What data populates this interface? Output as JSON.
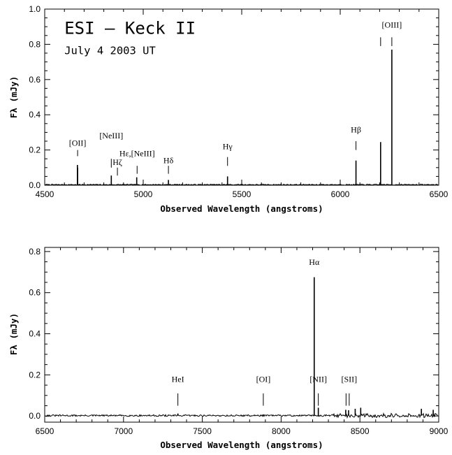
{
  "chart_data": [
    {
      "type": "line",
      "panel": "top",
      "title": "ESI – Keck II",
      "subtitle": "July 4 2003 UT",
      "xlabel": "Observed Wavelength (angstroms)",
      "ylabel": "Fλ (mJy)",
      "xlim": [
        4500,
        6500
      ],
      "ylim": [
        0.0,
        1.0
      ],
      "xticks": [
        4500,
        5000,
        5500,
        6000,
        6500
      ],
      "xtick_labels": [
        "4500",
        "5000",
        "5500",
        "6000",
        "6500"
      ],
      "yticks": [
        0.0,
        0.2,
        0.4,
        0.6,
        0.8,
        1.0
      ],
      "ytick_labels": [
        "0.0",
        "0.2",
        "0.4",
        "0.6",
        "0.8",
        "1.0"
      ],
      "continuum": 0.003,
      "noise": 0.003,
      "lines": [
        {
          "x": 4666,
          "y": 0.115
        },
        {
          "x": 4667,
          "y": 0.1
        },
        {
          "x": 4838,
          "y": 0.055
        },
        {
          "x": 4967,
          "y": 0.045
        },
        {
          "x": 5128,
          "y": 0.03
        },
        {
          "x": 5428,
          "y": 0.05
        },
        {
          "x": 6080,
          "y": 0.14
        },
        {
          "x": 6205,
          "y": 0.245
        },
        {
          "x": 6262,
          "y": 0.77
        }
      ],
      "annotations": [
        {
          "label": "[OII]",
          "x": 4667,
          "tick": [
            0.165,
            0.2
          ],
          "label_y": 0.225
        },
        {
          "label": "[NeIII]",
          "x": 4838,
          "tick": [
            0.1,
            0.15
          ],
          "label_y": 0.265
        },
        {
          "label": "Hζ",
          "x": 4869,
          "tick": [
            0.055,
            0.1
          ],
          "label_y": 0.115
        },
        {
          "label": "Hε,[NeIII]",
          "x": 4969,
          "tick": [
            0.065,
            0.11
          ],
          "label_y": 0.165
        },
        {
          "label": "Hδ",
          "x": 5128,
          "tick": [
            0.065,
            0.11
          ],
          "label_y": 0.125
        },
        {
          "label": "Hγ",
          "x": 5428,
          "tick": [
            0.11,
            0.16
          ],
          "label_y": 0.205
        },
        {
          "label": "Hβ",
          "x": 6080,
          "tick": [
            0.2,
            0.25
          ],
          "label_y": 0.3
        },
        {
          "label": "",
          "x": 6205,
          "tick": [
            0.79,
            0.84
          ],
          "label_y": 0
        },
        {
          "label": "[OIII]",
          "x": 6262,
          "tick": [
            0.79,
            0.84
          ],
          "label_y": 0.895
        }
      ],
      "text_blocks": [
        {
          "text": "ESI – Keck II",
          "x": 4600,
          "y": 0.86,
          "style": "big"
        },
        {
          "text": "July 4 2003 UT",
          "x": 4600,
          "y": 0.745,
          "style": "sub"
        }
      ]
    },
    {
      "type": "line",
      "panel": "bottom",
      "xlabel": "Observed Wavelength (angstroms)",
      "ylabel": "Fλ (mJy)",
      "xlim": [
        6500,
        9000
      ],
      "ylim": [
        -0.03,
        0.82
      ],
      "xticks": [
        6500,
        7000,
        7500,
        8000,
        8500,
        9000
      ],
      "xtick_labels": [
        "6500",
        "7000",
        "7500",
        "8000",
        "8500",
        "9000"
      ],
      "yticks": [
        0.0,
        0.2,
        0.4,
        0.6,
        0.8
      ],
      "ytick_labels": [
        "0.0",
        "0.2",
        "0.4",
        "0.6",
        "0.8"
      ],
      "continuum": 0.002,
      "noise": 0.004,
      "lines": [
        {
          "x": 7345,
          "y": 0.012
        },
        {
          "x": 7887,
          "y": 0.008
        },
        {
          "x": 8210,
          "y": 0.675
        },
        {
          "x": 8236,
          "y": 0.04
        },
        {
          "x": 8410,
          "y": 0.03
        },
        {
          "x": 8428,
          "y": 0.028
        },
        {
          "x": 8470,
          "y": 0.035
        },
        {
          "x": 8505,
          "y": 0.04
        },
        {
          "x": 8890,
          "y": 0.035
        },
        {
          "x": 8965,
          "y": 0.03
        }
      ],
      "annotations": [
        {
          "label": "HeI",
          "x": 7345,
          "tick": [
            0.05,
            0.11
          ],
          "label_y": 0.165
        },
        {
          "label": "[OI]",
          "x": 7887,
          "tick": [
            0.05,
            0.11
          ],
          "label_y": 0.165
        },
        {
          "label": "Hα",
          "x": 8210,
          "tick": [],
          "label_y": 0.735
        },
        {
          "label": "[NII]",
          "x": 8236,
          "tick": [
            0.05,
            0.11
          ],
          "label_y": 0.165
        },
        {
          "label": "",
          "x": 8412,
          "tick": [
            0.05,
            0.11
          ],
          "label_y": 0
        },
        {
          "label": "[SII]",
          "x": 8432,
          "tick": [
            0.05,
            0.11
          ],
          "label_y": 0.165
        }
      ]
    }
  ]
}
